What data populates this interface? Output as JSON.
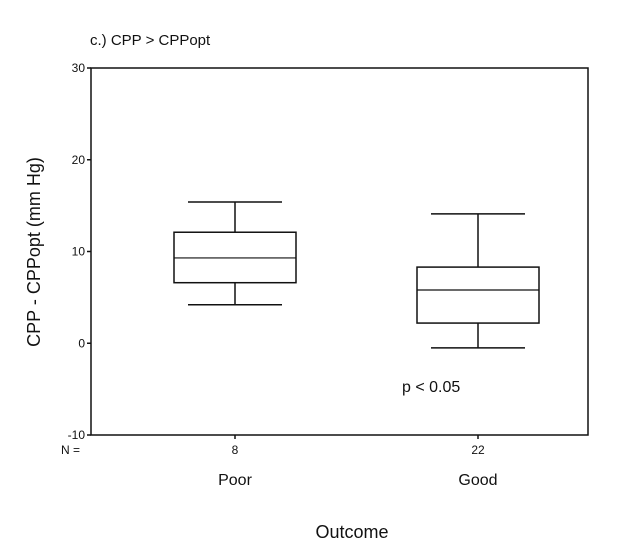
{
  "chart_data": {
    "type": "boxplot",
    "title": "c.) CPP > CPPopt",
    "ylabel": "CPP - CPPopt (mm Hg)",
    "xlabel": "Outcome",
    "ylim": [
      -10,
      30
    ],
    "yticks": [
      -10,
      0,
      10,
      20,
      30
    ],
    "n_label": "N =",
    "categories": [
      "Poor",
      "Good"
    ],
    "n_values": [
      "8",
      "22"
    ],
    "boxes": [
      {
        "category": "Poor",
        "n": 8,
        "whisker_low": 4.2,
        "q1": 6.6,
        "median": 9.3,
        "q3": 12.1,
        "whisker_high": 15.4
      },
      {
        "category": "Good",
        "n": 22,
        "whisker_low": -0.5,
        "q1": 2.2,
        "median": 5.8,
        "q3": 8.3,
        "whisker_high": 14.1
      }
    ],
    "annotation": "p < 0.05",
    "grid": false,
    "legend": "none"
  }
}
